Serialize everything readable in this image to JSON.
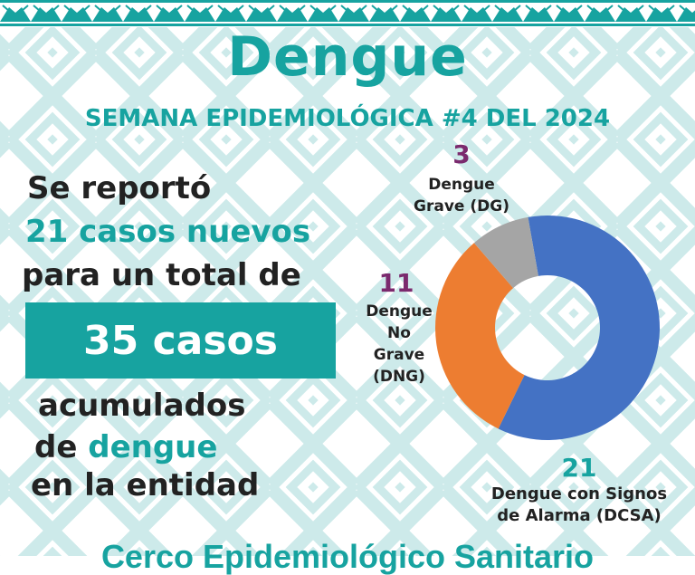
{
  "title": "Dengue",
  "subtitle": "SEMANA EPIDEMIOLÓGICA #4 DEL 2024",
  "summary": {
    "line1": "Se reportó",
    "line2": "21 casos nuevos",
    "line3": "para un total de",
    "total_box": "35 casos",
    "line4": "acumulados",
    "line5_prefix": "de ",
    "line5_highlight": "dengue",
    "line6": "en la entidad"
  },
  "bottom_text": "Cerco Epidemiológico Sanitario",
  "colors": {
    "teal": "#17a3a0",
    "purple": "#7b2a6e",
    "blue": "#4472c4",
    "orange": "#ed7d31",
    "gray": "#a5a5a5"
  },
  "chart_data": {
    "type": "pie",
    "donut": true,
    "slices": [
      {
        "label_line1": "Dengue con Signos",
        "label_line2": "de Alarma (DCSA)",
        "value": 21,
        "color": "#4472c4"
      },
      {
        "label_line1": "Dengue",
        "label_line2": "No",
        "label_line3": "Grave",
        "label_line4": "(DNG)",
        "value": 11,
        "color": "#ed7d31"
      },
      {
        "label_line1": "Dengue",
        "label_line2": "Grave (DG)",
        "value": 3,
        "color": "#a5a5a5"
      }
    ]
  }
}
